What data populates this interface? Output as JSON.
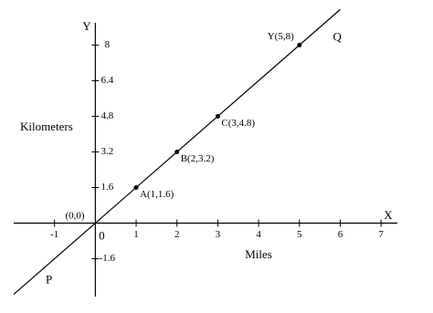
{
  "chart_data": {
    "type": "line",
    "x_label": "Miles",
    "y_label": "Kilometers",
    "x_axis_name": "X",
    "y_axis_name": "Y",
    "origin_label": "(0,0)",
    "xlim": [
      -2,
      7.4
    ],
    "ylim": [
      -3.3,
      9
    ],
    "xticks": [
      -1,
      0,
      1,
      2,
      3,
      4,
      5,
      6,
      7
    ],
    "yticks": [
      -1.6,
      1.6,
      3.2,
      4.8,
      6.4,
      8
    ],
    "line": {
      "x": [
        -2,
        6
      ],
      "y": [
        -3.2,
        9.6
      ],
      "start_label": "P",
      "end_label": "Q"
    },
    "points": {
      "x": [
        1,
        2,
        3,
        5
      ],
      "y": [
        1.6,
        3.2,
        4.8,
        8
      ],
      "labels": [
        "A(1,1.6)",
        "B(2,3.2)",
        "C(3,4.8)",
        "Y(5,8)"
      ]
    },
    "color": "#000000"
  }
}
